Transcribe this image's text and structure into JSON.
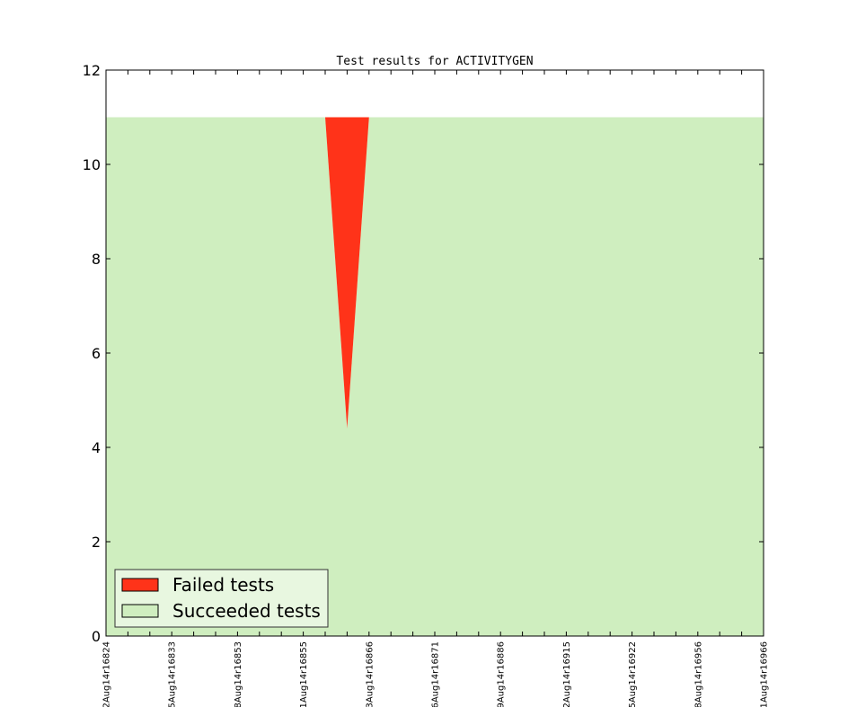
{
  "chart_data": {
    "type": "area",
    "title": "Test results for ACTIVITYGEN",
    "xlabel": "",
    "ylabel": "",
    "ylim": [
      0,
      12
    ],
    "yticks": [
      0,
      2,
      4,
      6,
      8,
      10,
      12
    ],
    "x_tick_labels": [
      "2Aug14r16824",
      "5Aug14r16833",
      "8Aug14r16853",
      "1Aug14r16855",
      "3Aug14r16866",
      "6Aug14r16871",
      "9Aug14r16886",
      "2Aug14r16915",
      "5Aug14r16922",
      "8Aug14r16956",
      "1Aug14r16966"
    ],
    "n_points": 31,
    "series": [
      {
        "name": "Failed tests",
        "color": "#ff3319",
        "values": [
          0,
          0,
          0,
          0,
          0,
          0,
          0,
          0,
          0,
          0,
          0,
          6.6,
          0,
          0,
          0,
          0,
          0,
          0,
          0,
          0,
          0,
          0,
          0,
          0,
          0,
          0,
          0,
          0,
          0,
          0,
          0
        ]
      },
      {
        "name": "Succeeded tests",
        "color": "#cfeebf",
        "values": [
          11,
          11,
          11,
          11,
          11,
          11,
          11,
          11,
          11,
          11,
          11,
          4.4,
          11,
          11,
          11,
          11,
          11,
          11,
          11,
          11,
          11,
          11,
          11,
          11,
          11,
          11,
          11,
          11,
          11,
          11,
          11
        ]
      }
    ],
    "legend": {
      "placement": "bottom-left",
      "entries": [
        "Failed tests",
        "Succeeded tests"
      ]
    },
    "grid": false
  }
}
